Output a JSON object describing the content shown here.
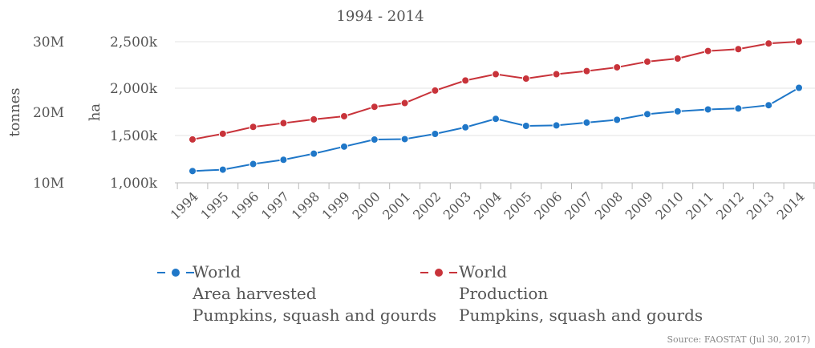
{
  "chart_data": {
    "type": "line",
    "title": "1994 - 2014",
    "x": [
      "1994",
      "1995",
      "1996",
      "1997",
      "1998",
      "1999",
      "2000",
      "2001",
      "2002",
      "2003",
      "2004",
      "2005",
      "2006",
      "2007",
      "2008",
      "2009",
      "2010",
      "2011",
      "2012",
      "2013",
      "2014"
    ],
    "left_axis": {
      "label": "tonnes",
      "ticks": [
        "30M",
        "20M",
        "10M"
      ]
    },
    "right_axis": {
      "label": "ha",
      "ticks": [
        "2,500k",
        "2,000k",
        "1,500k",
        "1,000k"
      ],
      "range": [
        1000000,
        2500000
      ]
    },
    "series": [
      {
        "name": "World Area harvested Pumpkins, squash and gourds",
        "legend_lines": [
          "World",
          "Area harvested",
          "Pumpkins, squash and gourds"
        ],
        "color": "#1f77c8",
        "axis": "ha",
        "values": [
          1125000,
          1140000,
          1200000,
          1245000,
          1310000,
          1385000,
          1460000,
          1465000,
          1520000,
          1590000,
          1680000,
          1605000,
          1610000,
          1640000,
          1670000,
          1730000,
          1760000,
          1780000,
          1790000,
          1825000,
          2010000
        ]
      },
      {
        "name": "World Production Pumpkins, squash and gourds",
        "legend_lines": [
          "World",
          "Production",
          "Pumpkins, squash and gourds"
        ],
        "color": "#c8333a",
        "axis": "tonnes",
        "values": [
          14800000,
          15700000,
          16800000,
          17400000,
          18000000,
          18500000,
          20000000,
          20600000,
          22600000,
          24200000,
          25200000,
          24500000,
          25200000,
          25700000,
          26300000,
          27200000,
          27700000,
          28900000,
          29200000,
          30100000,
          30400000
        ]
      }
    ],
    "grid": true,
    "legend_position": "bottom"
  },
  "source": "Source: FAOSTAT (Jul 30, 2017)"
}
